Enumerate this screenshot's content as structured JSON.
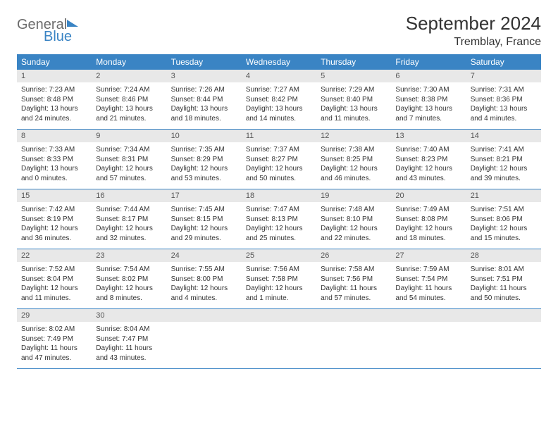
{
  "brand": {
    "general": "General",
    "blue": "Blue"
  },
  "title": "September 2024",
  "location": "Tremblay, France",
  "colors": {
    "header_bg": "#3a84c4",
    "header_text": "#ffffff",
    "daynum_bg": "#e8e8e8",
    "daynum_text": "#555555",
    "body_text": "#333333",
    "row_border": "#3a84c4",
    "page_bg": "#ffffff",
    "logo_gray": "#6b6b6b",
    "logo_blue": "#3a84c4"
  },
  "typography": {
    "title_fontsize": 26,
    "location_fontsize": 16,
    "weekday_fontsize": 12,
    "daynum_fontsize": 11,
    "cell_fontsize": 10
  },
  "weekdays": [
    "Sunday",
    "Monday",
    "Tuesday",
    "Wednesday",
    "Thursday",
    "Friday",
    "Saturday"
  ],
  "rows": [
    [
      {
        "n": "1",
        "sr": "7:23 AM",
        "ss": "8:48 PM",
        "dl": "13 hours and 24 minutes."
      },
      {
        "n": "2",
        "sr": "7:24 AM",
        "ss": "8:46 PM",
        "dl": "13 hours and 21 minutes."
      },
      {
        "n": "3",
        "sr": "7:26 AM",
        "ss": "8:44 PM",
        "dl": "13 hours and 18 minutes."
      },
      {
        "n": "4",
        "sr": "7:27 AM",
        "ss": "8:42 PM",
        "dl": "13 hours and 14 minutes."
      },
      {
        "n": "5",
        "sr": "7:29 AM",
        "ss": "8:40 PM",
        "dl": "13 hours and 11 minutes."
      },
      {
        "n": "6",
        "sr": "7:30 AM",
        "ss": "8:38 PM",
        "dl": "13 hours and 7 minutes."
      },
      {
        "n": "7",
        "sr": "7:31 AM",
        "ss": "8:36 PM",
        "dl": "13 hours and 4 minutes."
      }
    ],
    [
      {
        "n": "8",
        "sr": "7:33 AM",
        "ss": "8:33 PM",
        "dl": "13 hours and 0 minutes."
      },
      {
        "n": "9",
        "sr": "7:34 AM",
        "ss": "8:31 PM",
        "dl": "12 hours and 57 minutes."
      },
      {
        "n": "10",
        "sr": "7:35 AM",
        "ss": "8:29 PM",
        "dl": "12 hours and 53 minutes."
      },
      {
        "n": "11",
        "sr": "7:37 AM",
        "ss": "8:27 PM",
        "dl": "12 hours and 50 minutes."
      },
      {
        "n": "12",
        "sr": "7:38 AM",
        "ss": "8:25 PM",
        "dl": "12 hours and 46 minutes."
      },
      {
        "n": "13",
        "sr": "7:40 AM",
        "ss": "8:23 PM",
        "dl": "12 hours and 43 minutes."
      },
      {
        "n": "14",
        "sr": "7:41 AM",
        "ss": "8:21 PM",
        "dl": "12 hours and 39 minutes."
      }
    ],
    [
      {
        "n": "15",
        "sr": "7:42 AM",
        "ss": "8:19 PM",
        "dl": "12 hours and 36 minutes."
      },
      {
        "n": "16",
        "sr": "7:44 AM",
        "ss": "8:17 PM",
        "dl": "12 hours and 32 minutes."
      },
      {
        "n": "17",
        "sr": "7:45 AM",
        "ss": "8:15 PM",
        "dl": "12 hours and 29 minutes."
      },
      {
        "n": "18",
        "sr": "7:47 AM",
        "ss": "8:13 PM",
        "dl": "12 hours and 25 minutes."
      },
      {
        "n": "19",
        "sr": "7:48 AM",
        "ss": "8:10 PM",
        "dl": "12 hours and 22 minutes."
      },
      {
        "n": "20",
        "sr": "7:49 AM",
        "ss": "8:08 PM",
        "dl": "12 hours and 18 minutes."
      },
      {
        "n": "21",
        "sr": "7:51 AM",
        "ss": "8:06 PM",
        "dl": "12 hours and 15 minutes."
      }
    ],
    [
      {
        "n": "22",
        "sr": "7:52 AM",
        "ss": "8:04 PM",
        "dl": "12 hours and 11 minutes."
      },
      {
        "n": "23",
        "sr": "7:54 AM",
        "ss": "8:02 PM",
        "dl": "12 hours and 8 minutes."
      },
      {
        "n": "24",
        "sr": "7:55 AM",
        "ss": "8:00 PM",
        "dl": "12 hours and 4 minutes."
      },
      {
        "n": "25",
        "sr": "7:56 AM",
        "ss": "7:58 PM",
        "dl": "12 hours and 1 minute."
      },
      {
        "n": "26",
        "sr": "7:58 AM",
        "ss": "7:56 PM",
        "dl": "11 hours and 57 minutes."
      },
      {
        "n": "27",
        "sr": "7:59 AM",
        "ss": "7:54 PM",
        "dl": "11 hours and 54 minutes."
      },
      {
        "n": "28",
        "sr": "8:01 AM",
        "ss": "7:51 PM",
        "dl": "11 hours and 50 minutes."
      }
    ],
    [
      {
        "n": "29",
        "sr": "8:02 AM",
        "ss": "7:49 PM",
        "dl": "11 hours and 47 minutes."
      },
      {
        "n": "30",
        "sr": "8:04 AM",
        "ss": "7:47 PM",
        "dl": "11 hours and 43 minutes."
      },
      {
        "empty": true
      },
      {
        "empty": true
      },
      {
        "empty": true
      },
      {
        "empty": true
      },
      {
        "empty": true
      }
    ]
  ],
  "labels": {
    "sunrise": "Sunrise:",
    "sunset": "Sunset:",
    "daylight": "Daylight:"
  }
}
